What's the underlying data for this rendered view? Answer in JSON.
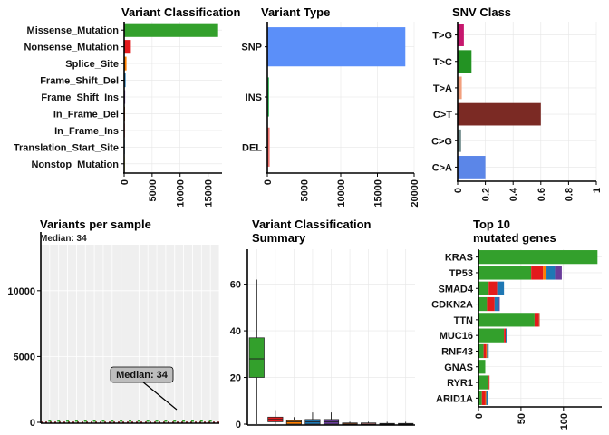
{
  "chart_data": [
    {
      "id": "vc",
      "type": "bar",
      "orientation": "horizontal",
      "title": "Variant Classification",
      "categories": [
        "Missense_Mutation",
        "Nonsense_Mutation",
        "Splice_Site",
        "Frame_Shift_Del",
        "Frame_Shift_Ins",
        "In_Frame_Del",
        "In_Frame_Ins",
        "Translation_Start_Site",
        "Nonstop_Mutation"
      ],
      "values": [
        16800,
        1200,
        420,
        260,
        180,
        30,
        15,
        10,
        5
      ],
      "colors": [
        "#33a02c",
        "#e31a1c",
        "#ff7f00",
        "#1f78b4",
        "#6a3d9a",
        "#b15928",
        "#fb9a99",
        "#a6cee3",
        "#ffff99"
      ],
      "xlim": [
        0,
        17500
      ],
      "xticks": [
        0,
        5000,
        10000,
        15000
      ]
    },
    {
      "id": "vt",
      "type": "bar",
      "orientation": "horizontal",
      "title": "Variant Type",
      "categories": [
        "SNP",
        "INS",
        "DEL"
      ],
      "values": [
        18800,
        180,
        320
      ],
      "colors": [
        "#5b8ff9",
        "#4ac26b",
        "#f07470"
      ],
      "xlim": [
        0,
        20000
      ],
      "xticks": [
        0,
        5000,
        10000,
        15000,
        20000
      ]
    },
    {
      "id": "snv",
      "type": "bar",
      "orientation": "horizontal",
      "title": "SNV Class",
      "categories": [
        "T>G",
        "T>C",
        "T>A",
        "C>T",
        "C>G",
        "C>A"
      ],
      "values": [
        0.045,
        0.1,
        0.03,
        0.6,
        0.025,
        0.2
      ],
      "colors": [
        "#c7176e",
        "#239323",
        "#f2a07e",
        "#7b2a24",
        "#6f8a8a",
        "#5b86e8"
      ],
      "xlim": [
        0,
        1
      ],
      "xticks": [
        0,
        0.2,
        0.4,
        0.6,
        0.8,
        1
      ],
      "xtick_labels": [
        "0",
        "0.2",
        "0.4",
        "0.6",
        "0.8",
        "1"
      ]
    },
    {
      "id": "vps",
      "type": "bar",
      "title": "Variants per sample",
      "subtitle": "Median: 34",
      "annotation": "Median: 34",
      "sample_count": 19,
      "values_note": "stacked per-sample counts near zero",
      "ylim": [
        0,
        13500
      ],
      "yticks": [
        0,
        5000,
        10000
      ]
    },
    {
      "id": "vcs",
      "type": "box",
      "title": "Variant Classification",
      "title2": "Summary",
      "ylim": [
        0,
        75
      ],
      "yticks": [
        0,
        20,
        40,
        60
      ],
      "boxes": [
        {
          "color": "#33a02c",
          "min": 0,
          "q1": 20,
          "median": 28,
          "q3": 37,
          "max": 62
        },
        {
          "color": "#e31a1c",
          "min": 0,
          "q1": 1,
          "median": 2,
          "q3": 3,
          "max": 6
        },
        {
          "color": "#ff7f00",
          "min": 0,
          "q1": 0,
          "median": 1,
          "q3": 1.5,
          "max": 3
        },
        {
          "color": "#1f78b4",
          "min": 0,
          "q1": 0,
          "median": 1,
          "q3": 2,
          "max": 5
        },
        {
          "color": "#6a3d9a",
          "min": 0,
          "q1": 0,
          "median": 1,
          "q3": 2,
          "max": 5
        },
        {
          "color": "#b15928",
          "min": 0,
          "q1": 0,
          "median": 0,
          "q3": 0.5,
          "max": 1
        },
        {
          "color": "#fb9a99",
          "min": 0,
          "q1": 0,
          "median": 0,
          "q3": 0.5,
          "max": 1
        },
        {
          "color": "#a6cee3",
          "min": 0,
          "q1": 0,
          "median": 0,
          "q3": 0.3,
          "max": 1
        },
        {
          "color": "#ffff99",
          "min": 0,
          "q1": 0,
          "median": 0,
          "q3": 0.3,
          "max": 1
        }
      ]
    },
    {
      "id": "top10",
      "type": "bar",
      "orientation": "horizontal",
      "stacked": true,
      "title": "Top 10",
      "title2": "mutated genes",
      "categories": [
        "KRAS",
        "TP53",
        "SMAD4",
        "CDKN2A",
        "TTN",
        "MUC16",
        "RNF43",
        "GNAS",
        "RYR1",
        "ARID1A"
      ],
      "xlim": [
        0,
        145
      ],
      "xticks": [
        0,
        50,
        100
      ],
      "series": [
        {
          "color": "#33a02c",
          "values": [
            140,
            62,
            12,
            10,
            66,
            30,
            6,
            8,
            12,
            4
          ]
        },
        {
          "color": "#e31a1c",
          "values": [
            0,
            14,
            10,
            9,
            5,
            2,
            3,
            0,
            1,
            4
          ]
        },
        {
          "color": "#ff7f00",
          "values": [
            0,
            4,
            0,
            0,
            0,
            0,
            1,
            0,
            0,
            1
          ]
        },
        {
          "color": "#1f78b4",
          "values": [
            0,
            10,
            8,
            5,
            0,
            1,
            2,
            0,
            0,
            2
          ]
        },
        {
          "color": "#6a3d9a",
          "values": [
            0,
            8,
            0,
            1,
            0,
            0,
            0,
            0,
            0,
            0
          ]
        },
        {
          "color": "#b15928",
          "values": [
            0,
            0,
            0,
            0,
            1,
            0,
            0,
            0,
            0,
            0
          ]
        }
      ]
    }
  ]
}
